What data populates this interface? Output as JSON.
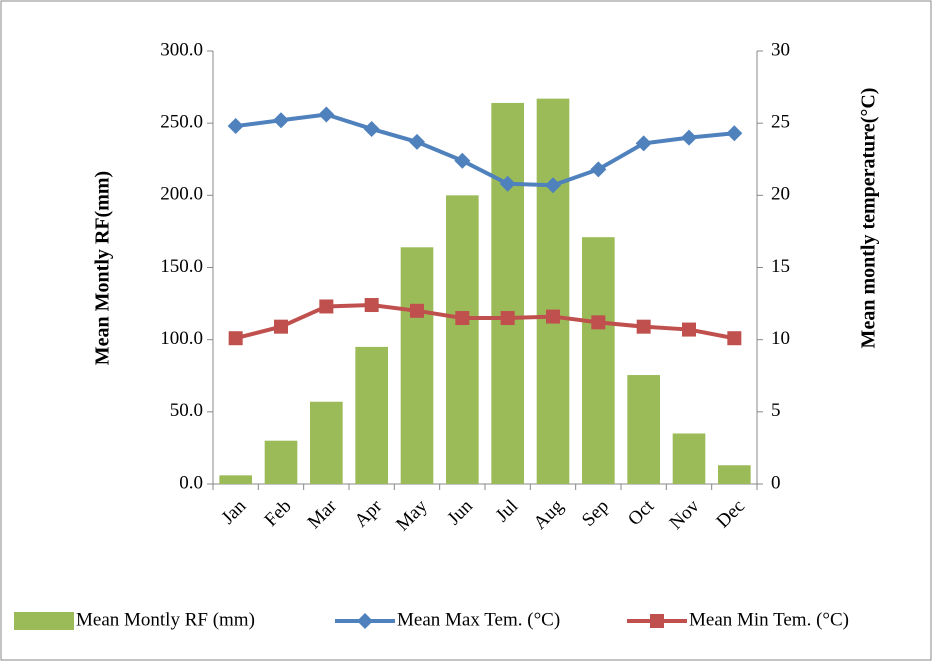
{
  "chart_data": {
    "type": "bar-line",
    "categories": [
      "Jan",
      "Feb",
      "Mar",
      "Apr",
      "May",
      "Jun",
      "Jul",
      "Aug",
      "Sep",
      "Oct",
      "Nov",
      "Dec"
    ],
    "series": [
      {
        "name": "Mean Montly RF (mm)",
        "type": "bar",
        "color": "#9bbb59",
        "values": [
          6,
          30,
          57,
          95,
          164,
          200,
          264,
          267,
          171,
          75.5,
          35,
          13
        ]
      },
      {
        "name": "Mean Max Tem. (°C)",
        "type": "line",
        "axis": "y2",
        "color": "#4f81bd",
        "marker": "diamond",
        "values": [
          24.8,
          25.2,
          25.6,
          24.6,
          23.7,
          22.4,
          20.8,
          20.7,
          21.8,
          23.6,
          24.0,
          24.3
        ]
      },
      {
        "name": "Mean Min Tem. (°C)",
        "type": "line",
        "axis": "y2",
        "color": "#c0504d",
        "marker": "square",
        "values": [
          10.1,
          10.9,
          12.3,
          12.4,
          12.0,
          11.5,
          11.5,
          11.6,
          11.2,
          10.9,
          10.7,
          10.1
        ]
      }
    ],
    "y_label": "Mean Montly RF(mm)",
    "y2_label": "Mean montly  temperature(°C)",
    "ylim": [
      0,
      300
    ],
    "yticks": [
      {
        "value": 0,
        "label": "0.0"
      },
      {
        "value": 50,
        "label": "50.0"
      },
      {
        "value": 100,
        "label": "100.0"
      },
      {
        "value": 150,
        "label": "150.0"
      },
      {
        "value": 200,
        "label": "200.0"
      },
      {
        "value": 250,
        "label": "250.0"
      },
      {
        "value": 300,
        "label": "300.0"
      }
    ],
    "y2lim": [
      0,
      30
    ],
    "y2ticks": [
      0,
      5,
      10,
      15,
      20,
      25,
      30
    ],
    "grid": false,
    "legend": "bottom"
  }
}
